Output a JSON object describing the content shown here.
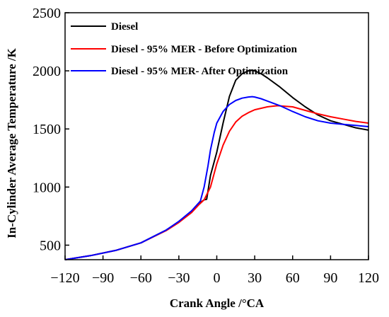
{
  "chart_data": {
    "type": "line",
    "xlabel": "Crank Angle /°CA",
    "ylabel": "In-Cylinder Average Temperature /K",
    "xlim": [
      -120,
      120
    ],
    "ylim": [
      375,
      2500
    ],
    "xticks": [
      -120,
      -90,
      -60,
      -30,
      0,
      30,
      60,
      90,
      120
    ],
    "yticks": [
      500,
      1000,
      1500,
      2000,
      2500
    ],
    "grid": false,
    "legend_position": "top-right",
    "series": [
      {
        "name": "Diesel",
        "color": "#000000",
        "x": [
          -120,
          -100,
          -80,
          -60,
          -40,
          -30,
          -20,
          -14,
          -10,
          -8,
          -5,
          0,
          5,
          10,
          15,
          20,
          25,
          28,
          30,
          35,
          40,
          50,
          60,
          70,
          80,
          90,
          100,
          110,
          120
        ],
        "y": [
          375,
          410,
          455,
          520,
          630,
          700,
          790,
          860,
          890,
          895,
          1100,
          1300,
          1550,
          1780,
          1920,
          1975,
          2000,
          2005,
          2000,
          1975,
          1940,
          1860,
          1770,
          1690,
          1620,
          1570,
          1540,
          1510,
          1490
        ]
      },
      {
        "name": "Diesel - 95% MER - Before Optimization",
        "color": "#ff0000",
        "x": [
          -120,
          -100,
          -80,
          -60,
          -40,
          -30,
          -20,
          -14,
          -10,
          -5,
          0,
          5,
          10,
          15,
          20,
          25,
          30,
          40,
          48,
          60,
          70,
          80,
          90,
          100,
          110,
          120
        ],
        "y": [
          375,
          410,
          455,
          520,
          625,
          695,
          780,
          850,
          890,
          1000,
          1200,
          1360,
          1480,
          1560,
          1610,
          1640,
          1665,
          1690,
          1700,
          1690,
          1660,
          1630,
          1605,
          1585,
          1565,
          1550
        ]
      },
      {
        "name": "Diesel - 95% MER- After Optimization",
        "color": "#0000ff",
        "x": [
          -120,
          -100,
          -80,
          -60,
          -40,
          -30,
          -20,
          -15,
          -13,
          -10,
          -7,
          -5,
          -2,
          0,
          5,
          10,
          15,
          20,
          25,
          28,
          30,
          35,
          40,
          50,
          60,
          70,
          80,
          90,
          100,
          110,
          120
        ],
        "y": [
          375,
          410,
          455,
          520,
          630,
          705,
          795,
          855,
          880,
          1000,
          1180,
          1320,
          1470,
          1550,
          1650,
          1710,
          1745,
          1765,
          1775,
          1778,
          1775,
          1760,
          1740,
          1700,
          1650,
          1605,
          1570,
          1550,
          1540,
          1530,
          1520
        ]
      }
    ]
  }
}
